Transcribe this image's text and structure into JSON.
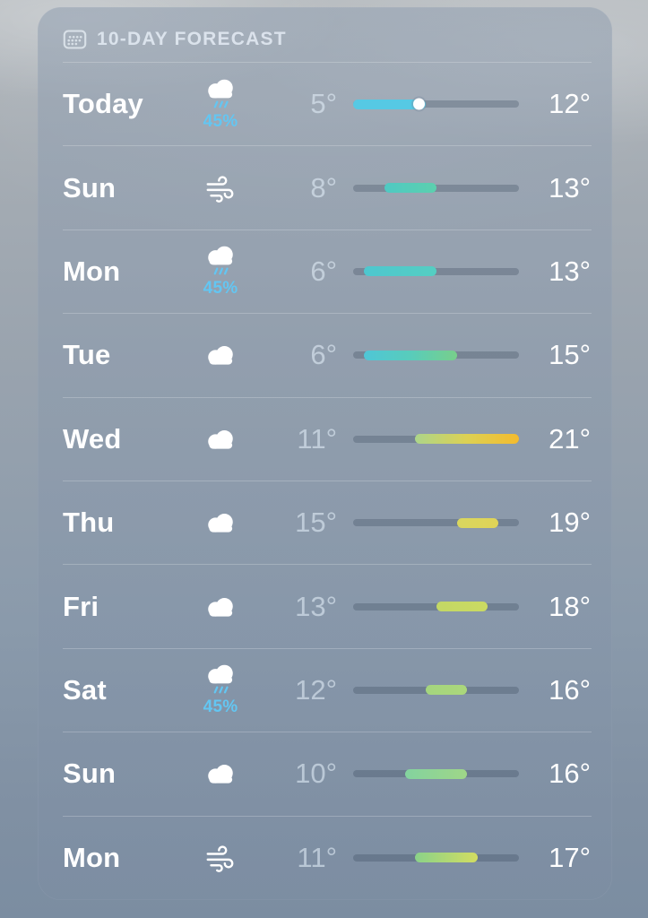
{
  "header": {
    "title": "10-DAY FORECAST",
    "icon": "calendar-icon"
  },
  "temperature_scale": {
    "min_deg": 5,
    "max_deg": 21
  },
  "colors": {
    "precip_text": "#63c6f2",
    "track": "rgba(38,54,76,0.25)",
    "today_fill": "#56C9E4",
    "accent_amber": "#F6B42C"
  },
  "rows": [
    {
      "day": "Today",
      "icon": "rain-cloud",
      "precip": "45%",
      "low": "5°",
      "high": "12°",
      "low_val": 5,
      "high_val": 12,
      "bar": {
        "start_pct": 0,
        "end_pct": 43.75,
        "colors": [
          "#56C9E4",
          "#56C9E4"
        ],
        "dot_pct": 41
      }
    },
    {
      "day": "Sun",
      "icon": "wind",
      "precip": null,
      "low": "8°",
      "high": "13°",
      "low_val": 8,
      "high_val": 13,
      "bar": {
        "start_pct": 18.75,
        "end_pct": 50,
        "colors": [
          "#4FC9C3",
          "#5CD0AE"
        ],
        "dot_pct": null
      }
    },
    {
      "day": "Mon",
      "icon": "rain-cloud",
      "precip": "45%",
      "low": "6°",
      "high": "13°",
      "low_val": 6,
      "high_val": 13,
      "bar": {
        "start_pct": 6.25,
        "end_pct": 50,
        "colors": [
          "#4EC7CF",
          "#55CEC2"
        ],
        "dot_pct": null
      }
    },
    {
      "day": "Tue",
      "icon": "cloud",
      "precip": null,
      "low": "6°",
      "high": "15°",
      "low_val": 6,
      "high_val": 15,
      "bar": {
        "start_pct": 6.25,
        "end_pct": 62.5,
        "colors": [
          "#4FC6D7",
          "#58CCBB",
          "#78CF8B"
        ],
        "dot_pct": null
      }
    },
    {
      "day": "Wed",
      "icon": "cloud",
      "precip": null,
      "low": "11°",
      "high": "21°",
      "low_val": 11,
      "high_val": 21,
      "bar": {
        "start_pct": 37.5,
        "end_pct": 100,
        "colors": [
          "#ACD58A",
          "#DDD153",
          "#F4BB2E"
        ],
        "dot_pct": null
      }
    },
    {
      "day": "Thu",
      "icon": "cloud",
      "precip": null,
      "low": "15°",
      "high": "19°",
      "low_val": 15,
      "high_val": 19,
      "bar": {
        "start_pct": 62.5,
        "end_pct": 87.5,
        "colors": [
          "#D9D65F",
          "#E0D457"
        ],
        "dot_pct": null
      }
    },
    {
      "day": "Fri",
      "icon": "cloud",
      "precip": null,
      "low": "13°",
      "high": "18°",
      "low_val": 13,
      "high_val": 18,
      "bar": {
        "start_pct": 50,
        "end_pct": 81.25,
        "colors": [
          "#C3D865",
          "#CBDA62"
        ],
        "dot_pct": null
      }
    },
    {
      "day": "Sat",
      "icon": "rain-cloud",
      "precip": "45%",
      "low": "12°",
      "high": "16°",
      "low_val": 12,
      "high_val": 16,
      "bar": {
        "start_pct": 43.75,
        "end_pct": 68.75,
        "colors": [
          "#A4D57E",
          "#ABD77B"
        ],
        "dot_pct": null
      }
    },
    {
      "day": "Sun",
      "icon": "cloud",
      "precip": null,
      "low": "10°",
      "high": "16°",
      "low_val": 10,
      "high_val": 16,
      "bar": {
        "start_pct": 31.25,
        "end_pct": 68.75,
        "colors": [
          "#83D39F",
          "#9FD688"
        ],
        "dot_pct": null
      }
    },
    {
      "day": "Mon",
      "icon": "wind",
      "precip": null,
      "low": "11°",
      "high": "17°",
      "low_val": 11,
      "high_val": 17,
      "bar": {
        "start_pct": 37.5,
        "end_pct": 75,
        "colors": [
          "#8AD289",
          "#D3DD61"
        ],
        "dot_pct": null
      }
    }
  ]
}
